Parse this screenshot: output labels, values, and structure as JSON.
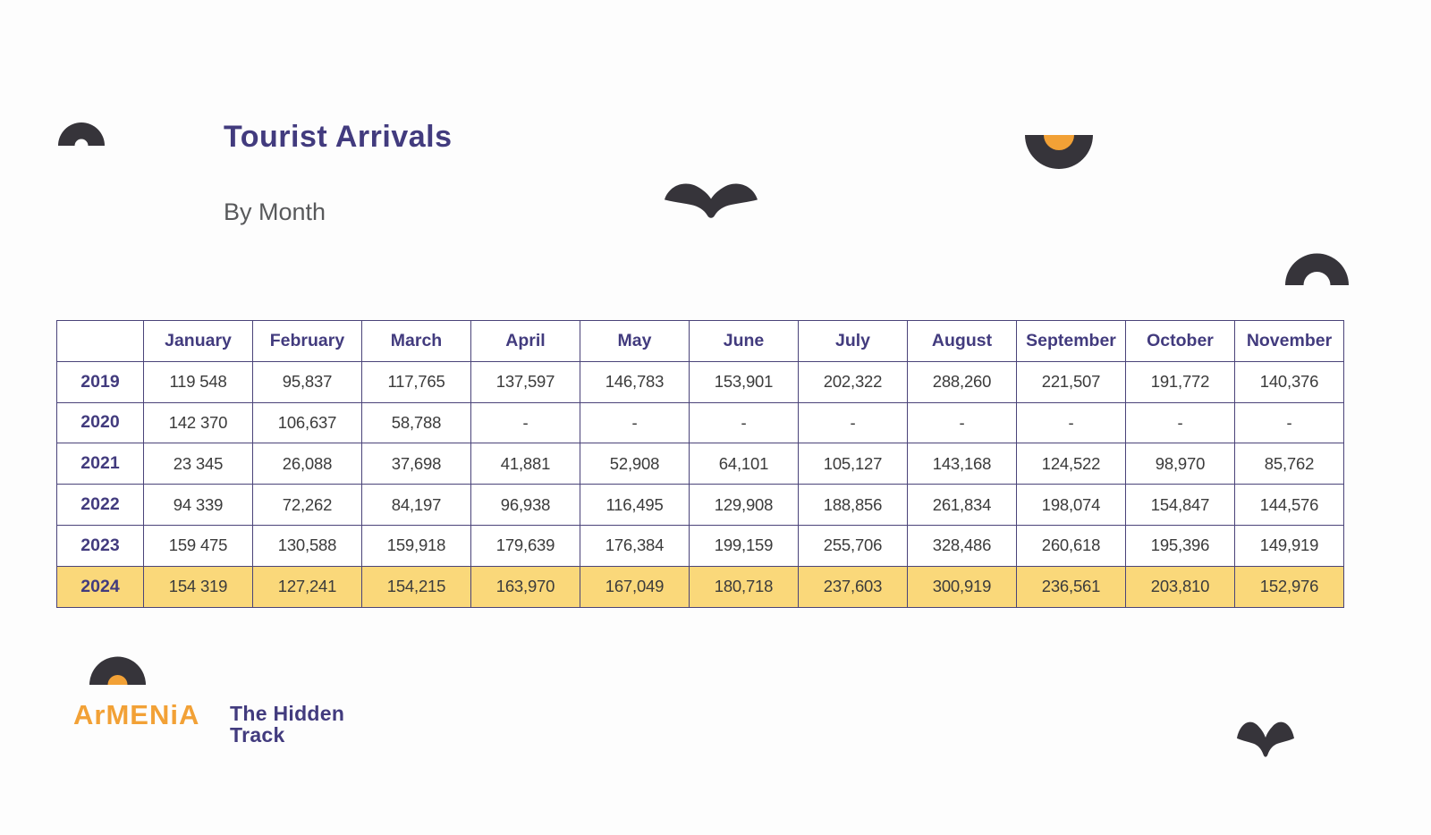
{
  "title": "Tourist Arrivals",
  "subtitle": "By Month",
  "logo": {
    "brand": "ArMENiA",
    "tagline_line1": "The Hidden",
    "tagline_line2": "Track"
  },
  "colors": {
    "purple": "#423b7e",
    "text": "#3b3b3b",
    "yellow": "#fad87a",
    "dark": "#36343a",
    "orange": "#f2a136",
    "border": "#4a4379",
    "subtitle": "#58595b",
    "bg": "#fdfdfd"
  },
  "chart_data": {
    "type": "table",
    "title": "Tourist Arrivals",
    "subtitle": "By Month",
    "columns": [
      "January",
      "February",
      "March",
      "April",
      "May",
      "June",
      "July",
      "August",
      "September",
      "October",
      "November"
    ],
    "rows": [
      {
        "year": "2019",
        "highlight": false,
        "values": [
          "119 548",
          "95,837",
          "117,765",
          "137,597",
          "146,783",
          "153,901",
          "202,322",
          "288,260",
          "221,507",
          "191,772",
          "140,376"
        ]
      },
      {
        "year": "2020",
        "highlight": false,
        "values": [
          "142 370",
          "106,637",
          "58,788",
          "-",
          "-",
          "-",
          "-",
          "-",
          "-",
          "-",
          "-"
        ]
      },
      {
        "year": "2021",
        "highlight": false,
        "values": [
          "23 345",
          "26,088",
          "37,698",
          "41,881",
          "52,908",
          "64,101",
          "105,127",
          "143,168",
          "124,522",
          "98,970",
          "85,762"
        ]
      },
      {
        "year": "2022",
        "highlight": false,
        "values": [
          "94 339",
          "72,262",
          "84,197",
          "96,938",
          "116,495",
          "129,908",
          "188,856",
          "261,834",
          "198,074",
          "154,847",
          "144,576"
        ]
      },
      {
        "year": "2023",
        "highlight": false,
        "values": [
          "159 475",
          "130,588",
          "159,918",
          "179,639",
          "176,384",
          "199,159",
          "255,706",
          "328,486",
          "260,618",
          "195,396",
          "149,919"
        ]
      },
      {
        "year": "2024",
        "highlight": true,
        "values": [
          "154 319",
          "127,241",
          "154,215",
          "163,970",
          "167,049",
          "180,718",
          "237,603",
          "300,919",
          "236,561",
          "203,810",
          "152,976"
        ]
      }
    ]
  }
}
